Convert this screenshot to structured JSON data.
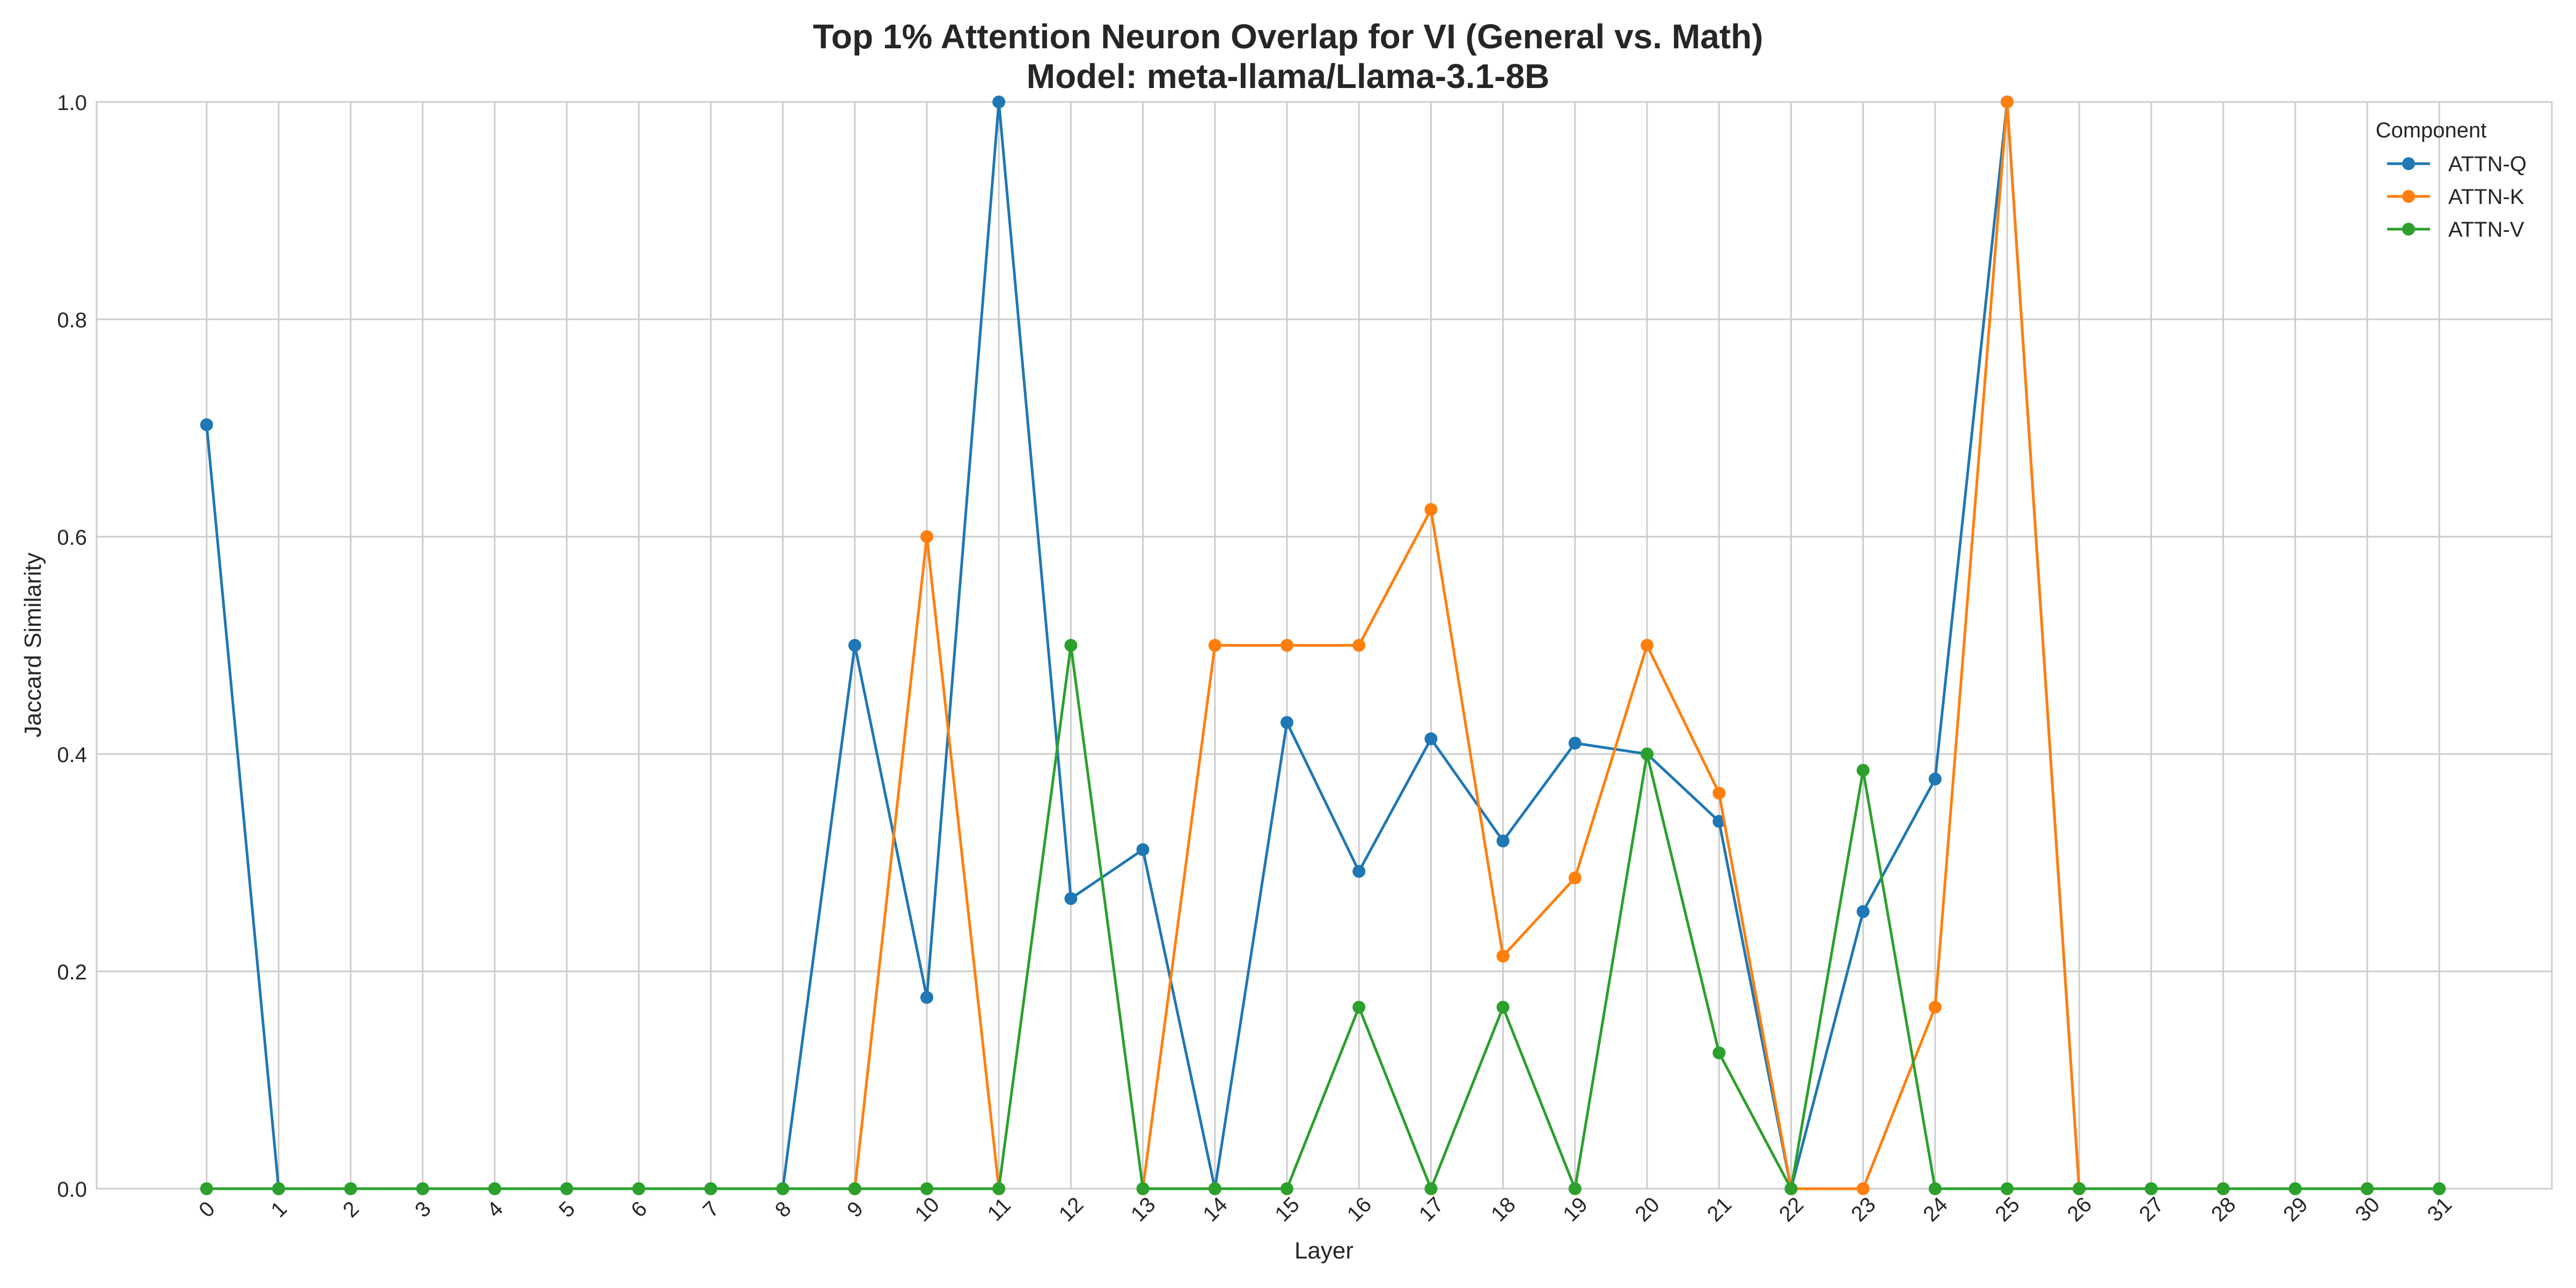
{
  "chart_data": {
    "type": "line",
    "title": "Top 1% Attention Neuron Overlap for VI (General vs. Math)",
    "subtitle": "Model: meta-llama/Llama-3.1-8B",
    "xlabel": "Layer",
    "ylabel": "Jaccard Similarity",
    "x": [
      0,
      1,
      2,
      3,
      4,
      5,
      6,
      7,
      8,
      9,
      10,
      11,
      12,
      13,
      14,
      15,
      16,
      17,
      18,
      19,
      20,
      21,
      22,
      23,
      24,
      25,
      26,
      27,
      28,
      29,
      30,
      31
    ],
    "ylim": [
      0,
      1.0
    ],
    "yticks": [
      "0.0",
      "0.2",
      "0.4",
      "0.6",
      "0.8",
      "1.0"
    ],
    "grid": true,
    "legend": {
      "title": "Component",
      "position": "top-right"
    },
    "series": [
      {
        "name": "ATTN-Q",
        "color": "#1f77b4",
        "values": [
          0.703,
          0,
          0,
          0,
          0,
          0,
          0,
          0,
          0,
          0.5,
          0.176,
          1.0,
          0.267,
          0.312,
          0,
          0.429,
          0.292,
          0.414,
          0.32,
          0.41,
          0.4,
          0.338,
          0,
          0.255,
          0.377,
          1.0,
          0,
          0,
          0,
          0,
          0,
          0
        ]
      },
      {
        "name": "ATTN-K",
        "color": "#ff7f0e",
        "values": [
          null,
          null,
          null,
          null,
          null,
          null,
          null,
          null,
          null,
          0,
          0.6,
          0,
          null,
          0,
          0.5,
          0.5,
          0.5,
          0.625,
          0.214,
          0.286,
          0.5,
          0.364,
          0,
          0,
          0.167,
          1.0,
          0,
          null,
          null,
          null,
          null,
          null
        ]
      },
      {
        "name": "ATTN-V",
        "color": "#2ca02c",
        "values": [
          0,
          0,
          0,
          0,
          0,
          0,
          0,
          0,
          0,
          0,
          0,
          0,
          0.5,
          0,
          0,
          0,
          0.167,
          0,
          0.167,
          0,
          0.4,
          0.125,
          0,
          0.385,
          0,
          0,
          0,
          0,
          0,
          0,
          0,
          0
        ]
      }
    ]
  }
}
